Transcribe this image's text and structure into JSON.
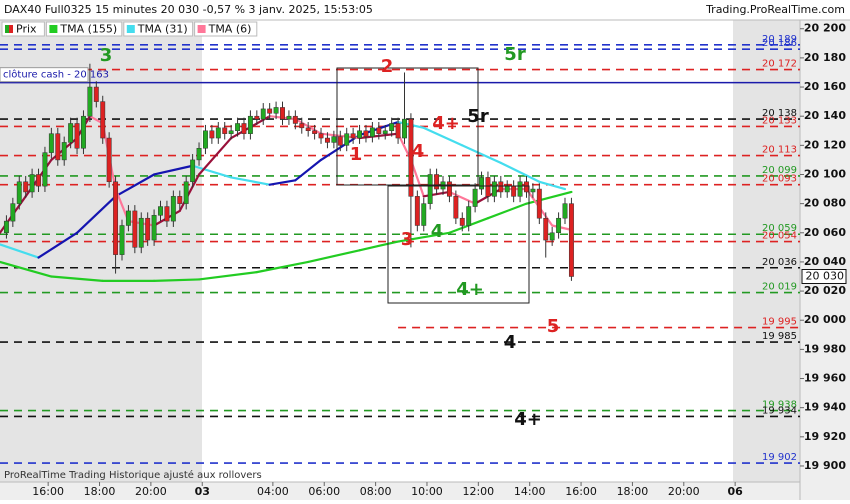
{
  "chart_data": {
    "type": "candlestick",
    "title": "DAX40 Full0325 15 minutes 20 030 -0,57 % 3 janv. 2025, 15:53:05",
    "source": "Trading.ProRealTime.com",
    "footer": "ProRealTime Trading Historique ajusté aux rollovers",
    "xlim": [
      0,
      124.6
    ],
    "ylim": [
      19889,
      20206
    ],
    "xticks": [
      {
        "value": 7.5,
        "label": "16:00"
      },
      {
        "value": 15.5,
        "label": "18:00"
      },
      {
        "value": 23.5,
        "label": "20:00"
      },
      {
        "value": 31.5,
        "label": "03"
      },
      {
        "value": 42.5,
        "label": "04:00"
      },
      {
        "value": 50.5,
        "label": "06:00"
      },
      {
        "value": 58.5,
        "label": "08:00"
      },
      {
        "value": 66.5,
        "label": "10:00"
      },
      {
        "value": 74.5,
        "label": "12:00"
      },
      {
        "value": 82.5,
        "label": "14:00"
      },
      {
        "value": 90.5,
        "label": "16:00"
      },
      {
        "value": 98.5,
        "label": "18:00"
      },
      {
        "value": 106.5,
        "label": "20:00"
      },
      {
        "value": 114.5,
        "label": "06"
      }
    ],
    "yticks": [
      {
        "value": 20200,
        "label": "20 200"
      },
      {
        "value": 20180,
        "label": "20 180"
      },
      {
        "value": 20160,
        "label": "20 160"
      },
      {
        "value": 20140,
        "label": "20 140"
      },
      {
        "value": 20120,
        "label": "20 120"
      },
      {
        "value": 20100,
        "label": "20 100"
      },
      {
        "value": 20080,
        "label": "20 080"
      },
      {
        "value": 20060,
        "label": "20 060"
      },
      {
        "value": 20040,
        "label": "20 040"
      },
      {
        "value": 20020,
        "label": "20 020"
      },
      {
        "value": 20000,
        "label": "20 000"
      },
      {
        "value": 19980,
        "label": "19 980"
      },
      {
        "value": 19960,
        "label": "19 960"
      },
      {
        "value": 19940,
        "label": "19 940"
      },
      {
        "value": 19920,
        "label": "19 920"
      },
      {
        "value": 19900,
        "label": "19 900"
      }
    ],
    "candles": {
      "name": "Prix",
      "up_color": "#22aa22",
      "down_color": "#dd2222",
      "x": [
        1,
        2,
        3,
        4,
        5,
        6,
        7,
        8,
        9,
        10,
        11,
        12,
        13,
        14,
        15,
        16,
        17,
        18,
        19,
        20,
        21,
        22,
        23,
        24,
        25,
        26,
        27,
        28,
        29,
        30,
        31,
        32,
        33,
        34,
        35,
        36,
        37,
        38,
        39,
        40,
        41,
        42,
        43,
        44,
        45,
        46,
        47,
        48,
        49,
        50,
        51,
        52,
        53,
        54,
        55,
        56,
        57,
        58,
        59,
        60,
        61,
        62,
        63,
        64,
        65,
        66,
        67,
        68,
        69,
        70,
        71,
        72,
        73,
        74,
        75,
        76,
        77,
        78,
        79,
        80,
        81,
        82,
        83,
        84,
        85,
        86,
        87,
        88,
        89
      ],
      "open": [
        20060,
        20068,
        20080,
        20095,
        20088,
        20100,
        20092,
        20115,
        20128,
        20110,
        20122,
        20135,
        20118,
        20140,
        20160,
        20150,
        20125,
        20095,
        20045,
        20065,
        20075,
        20050,
        20070,
        20055,
        20072,
        20078,
        20068,
        20085,
        20080,
        20095,
        20110,
        20118,
        20130,
        20125,
        20132,
        20128,
        20130,
        20135,
        20128,
        20140,
        20138,
        20145,
        20142,
        20146,
        20138,
        20140,
        20135,
        20132,
        20130,
        20128,
        20125,
        20122,
        20126,
        20120,
        20128,
        20125,
        20130,
        20126,
        20132,
        20128,
        20130,
        20135,
        20125,
        20138,
        20085,
        20065,
        20080,
        20100,
        20090,
        20095,
        20085,
        20070,
        20065,
        20078,
        20090,
        20098,
        20085,
        20095,
        20088,
        20092,
        20085,
        20095,
        20088,
        20090,
        20070,
        20055,
        20060,
        20070,
        20080
      ],
      "high": [
        20072,
        20084,
        20099,
        20099,
        20104,
        20104,
        20119,
        20132,
        20132,
        20126,
        20139,
        20139,
        20144,
        20176,
        20164,
        20154,
        20129,
        20099,
        20069,
        20079,
        20079,
        20074,
        20074,
        20076,
        20082,
        20082,
        20089,
        20089,
        20099,
        20114,
        20122,
        20134,
        20134,
        20136,
        20136,
        20134,
        20139,
        20139,
        20144,
        20144,
        20149,
        20149,
        20150,
        20150,
        20144,
        20144,
        20139,
        20136,
        20134,
        20132,
        20129,
        20130,
        20130,
        20132,
        20132,
        20134,
        20134,
        20136,
        20136,
        20134,
        20139,
        20139,
        20170,
        20142,
        20089,
        20084,
        20104,
        20104,
        20099,
        20099,
        20089,
        20074,
        20082,
        20094,
        20102,
        20102,
        20099,
        20099,
        20096,
        20096,
        20099,
        20099,
        20094,
        20094,
        20074,
        20064,
        20074,
        20084,
        20084
      ],
      "low": [
        20056,
        20064,
        20076,
        20084,
        20084,
        20088,
        20088,
        20111,
        20106,
        20106,
        20118,
        20114,
        20114,
        20136,
        20146,
        20121,
        20091,
        20032,
        20041,
        20061,
        20046,
        20046,
        20051,
        20051,
        20068,
        20064,
        20064,
        20076,
        20076,
        20091,
        20106,
        20114,
        20121,
        20121,
        20124,
        20124,
        20126,
        20124,
        20124,
        20134,
        20134,
        20138,
        20138,
        20134,
        20134,
        20131,
        20128,
        20126,
        20124,
        20121,
        20118,
        20118,
        20116,
        20116,
        20121,
        20121,
        20122,
        20122,
        20124,
        20124,
        20126,
        20121,
        20121,
        20050,
        20061,
        20061,
        20076,
        20086,
        20086,
        20081,
        20066,
        20061,
        20061,
        20074,
        20086,
        20081,
        20081,
        20084,
        20084,
        20081,
        20081,
        20084,
        20084,
        20066,
        20043,
        20051,
        20056,
        20066,
        20027
      ],
      "close": [
        20068,
        20080,
        20095,
        20088,
        20100,
        20092,
        20115,
        20128,
        20110,
        20122,
        20135,
        20118,
        20140,
        20160,
        20150,
        20125,
        20095,
        20045,
        20065,
        20075,
        20050,
        20070,
        20055,
        20072,
        20078,
        20068,
        20085,
        20080,
        20095,
        20110,
        20118,
        20130,
        20125,
        20132,
        20128,
        20130,
        20135,
        20128,
        20140,
        20138,
        20145,
        20142,
        20146,
        20138,
        20140,
        20135,
        20132,
        20130,
        20128,
        20125,
        20122,
        20126,
        20120,
        20128,
        20125,
        20130,
        20126,
        20132,
        20128,
        20130,
        20135,
        20125,
        20138,
        20085,
        20065,
        20080,
        20100,
        20090,
        20095,
        20085,
        20070,
        20065,
        20078,
        20090,
        20098,
        20085,
        20095,
        20088,
        20092,
        20085,
        20095,
        20088,
        20090,
        20070,
        20055,
        20060,
        20070,
        20080,
        20030
      ]
    },
    "series": [
      {
        "name": "TMA (155)",
        "color": "#22cc22",
        "rising_color": "#22cc22",
        "x": [
          0,
          8,
          16,
          24,
          31,
          40,
          48,
          56,
          62,
          70,
          76,
          82,
          89
        ],
        "values": [
          20040,
          20030,
          20027,
          20027,
          20028,
          20033,
          20040,
          20048,
          20054,
          20060,
          20070,
          20080,
          20088
        ]
      },
      {
        "name": "TMA (31)",
        "color": "#44ddee",
        "rising_color": "#1515b0",
        "x": [
          0,
          6,
          12,
          18,
          24,
          30,
          36,
          42,
          46,
          50,
          56,
          62,
          66,
          72,
          78,
          84,
          88
        ],
        "values": [
          20052,
          20043,
          20060,
          20085,
          20100,
          20106,
          20098,
          20093,
          20096,
          20110,
          20127,
          20136,
          20132,
          20120,
          20108,
          20095,
          20090
        ]
      },
      {
        "name": "TMA (6)",
        "color": "#ff7799",
        "rising_color": "#99103a",
        "x": [
          0,
          4,
          8,
          12,
          14,
          16,
          18,
          20,
          24,
          28,
          31,
          36,
          42,
          46,
          50,
          56,
          62,
          64,
          66,
          70,
          74,
          78,
          82,
          86,
          89
        ],
        "values": [
          20060,
          20085,
          20110,
          20125,
          20140,
          20135,
          20090,
          20068,
          20065,
          20075,
          20100,
          20125,
          20140,
          20138,
          20128,
          20125,
          20128,
          20110,
          20085,
          20088,
          20080,
          20090,
          20090,
          20065,
          20062
        ]
      }
    ],
    "levels": [
      {
        "value": 20189,
        "label": "20 189",
        "color": "#2233cc",
        "style": "dashed",
        "from": 0
      },
      {
        "value": 20186,
        "label": "20 186",
        "color": "#2233cc",
        "style": "dashed",
        "from": 0
      },
      {
        "value": 20172,
        "label": "20 172",
        "color": "#dd2222",
        "style": "dashed",
        "from": 0
      },
      {
        "value": 20138,
        "label": "20 138",
        "color": "#111111",
        "style": "dashed",
        "from": 0
      },
      {
        "value": 20133,
        "label": "20 133",
        "color": "#dd2222",
        "style": "dashed",
        "from": 0
      },
      {
        "value": 20113,
        "label": "20 113",
        "color": "#dd2222",
        "style": "dashed",
        "from": 0
      },
      {
        "value": 20099,
        "label": "20 099",
        "color": "#229922",
        "style": "dashed",
        "from": 0
      },
      {
        "value": 20093,
        "label": "20 093",
        "color": "#dd2222",
        "style": "dashed",
        "from": 0
      },
      {
        "value": 20059,
        "label": "20 059",
        "color": "#229922",
        "style": "dashed",
        "from": 0
      },
      {
        "value": 20054,
        "label": "20 054",
        "color": "#dd2222",
        "style": "dashed",
        "from": 0
      },
      {
        "value": 20036,
        "label": "20 036",
        "color": "#111111",
        "style": "dashed",
        "from": 0
      },
      {
        "value": 20019,
        "label": "20 019",
        "color": "#229922",
        "style": "dashed",
        "from": 0
      },
      {
        "value": 19995,
        "label": "19 995",
        "color": "#dd2222",
        "style": "dashed",
        "from": 62
      },
      {
        "value": 19985,
        "label": "19 985",
        "color": "#111111",
        "style": "dashed",
        "from": 0
      },
      {
        "value": 19938,
        "label": "19 938",
        "color": "#229922",
        "style": "dashed",
        "from": 0
      },
      {
        "value": 19934,
        "label": "19 934",
        "color": "#111111",
        "style": "dashed",
        "from": 0
      },
      {
        "value": 19902,
        "label": "19 902",
        "color": "#2233cc",
        "style": "dashed",
        "from": 0
      }
    ],
    "cash_close": {
      "value": 20163,
      "label": "clôture cash -  20 163",
      "color": "#1a1aaa"
    },
    "last": {
      "value": 20030,
      "label": "20 030"
    },
    "annotations": [
      {
        "text": "3",
        "color": "#229922"
      },
      {
        "text": "5r",
        "color": "#229922"
      },
      {
        "text": "2",
        "color": "#dd2222"
      },
      {
        "text": "1",
        "color": "#dd2222"
      },
      {
        "text": "4+",
        "color": "#dd2222"
      },
      {
        "text": "5r",
        "color": "#111111"
      },
      {
        "text": "4",
        "color": "#dd2222"
      },
      {
        "text": "3",
        "color": "#dd2222"
      },
      {
        "text": "4",
        "color": "#229922"
      },
      {
        "text": "4+",
        "color": "#229922"
      },
      {
        "text": "5",
        "color": "#dd2222"
      },
      {
        "text": "4",
        "color": "#111111"
      },
      {
        "text": "4+",
        "color": "#111111"
      }
    ]
  }
}
